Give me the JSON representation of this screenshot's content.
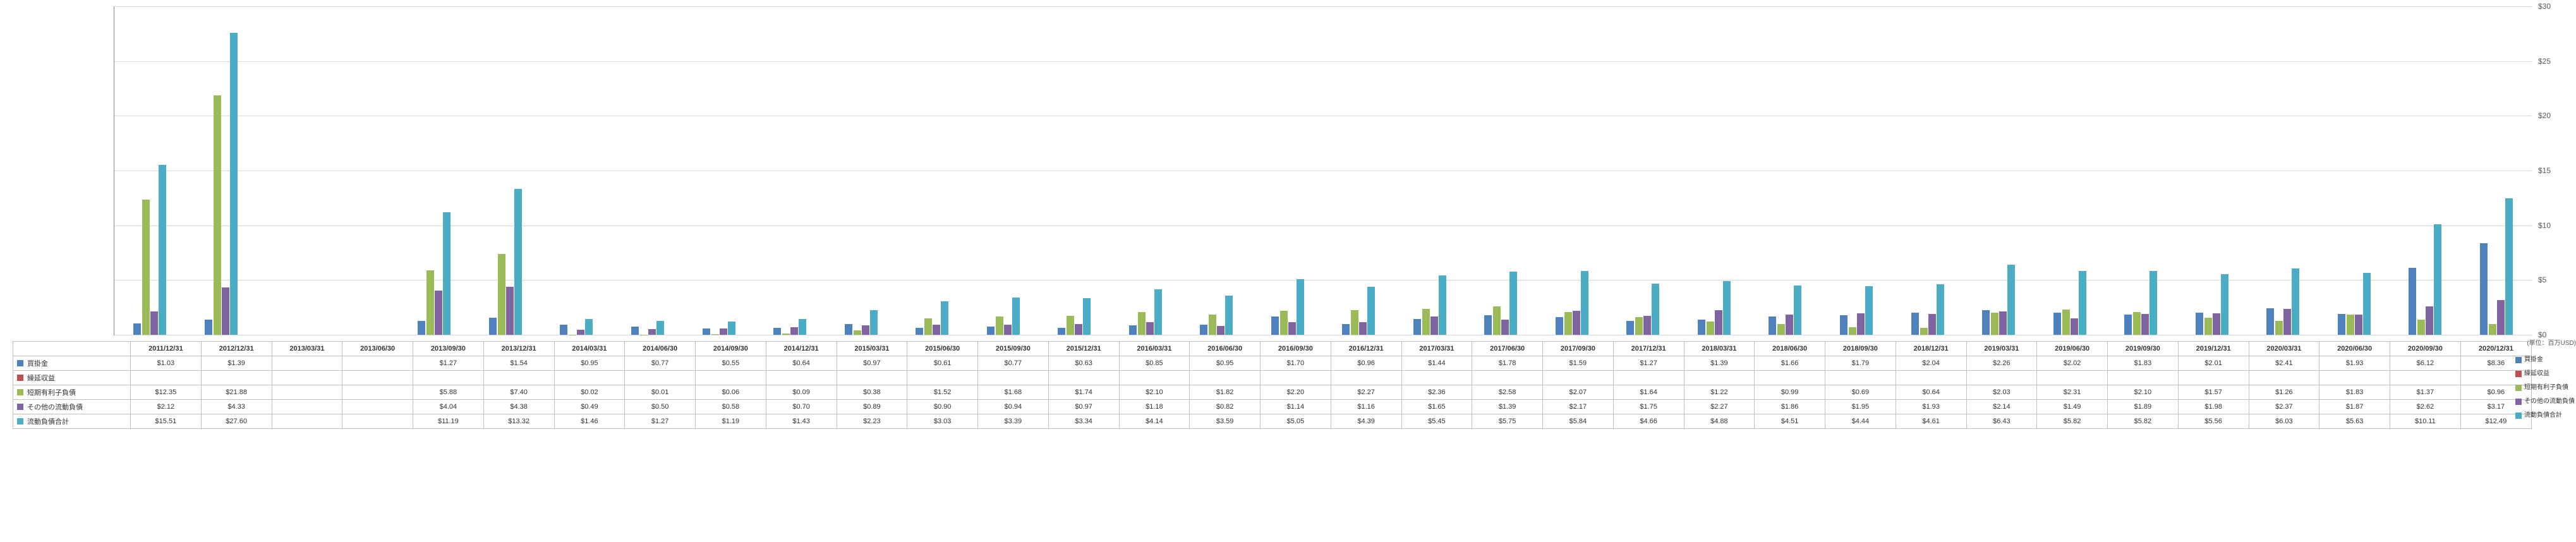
{
  "chart": {
    "type": "bar",
    "unit_label": "(単位：百万USD)",
    "ylim": [
      0,
      30
    ],
    "ytick_step": 5,
    "y_prefix": "$",
    "grid_color": "#d9d9d9",
    "axis_color": "#888888",
    "background_color": "#ffffff",
    "font_family": "Arial",
    "tick_fontsize": 12
  },
  "series": [
    {
      "key": "ap",
      "name": "買掛金",
      "color": "#4f81bd"
    },
    {
      "key": "def",
      "name": "繰延収益",
      "color": "#c0504d"
    },
    {
      "key": "std",
      "name": "短期有利子負債",
      "color": "#9bbb59"
    },
    {
      "key": "ocl",
      "name": "その他の流動負債",
      "color": "#8064a2"
    },
    {
      "key": "tcl",
      "name": "流動負債合計",
      "color": "#4bacc6"
    }
  ],
  "periods": [
    "2011/12/31",
    "2012/12/31",
    "2013/03/31",
    "2013/06/30",
    "2013/09/30",
    "2013/12/31",
    "2014/03/31",
    "2014/06/30",
    "2014/09/30",
    "2014/12/31",
    "2015/03/31",
    "2015/06/30",
    "2015/09/30",
    "2015/12/31",
    "2016/03/31",
    "2016/06/30",
    "2016/09/30",
    "2016/12/31",
    "2017/03/31",
    "2017/06/30",
    "2017/09/30",
    "2017/12/31",
    "2018/03/31",
    "2018/06/30",
    "2018/09/30",
    "2018/12/31",
    "2019/03/31",
    "2019/06/30",
    "2019/09/30",
    "2019/12/31",
    "2020/03/31",
    "2020/06/30",
    "2020/09/30",
    "2020/12/31"
  ],
  "data": {
    "ap": [
      "$1.03",
      "$1.39",
      "",
      "",
      "$1.27",
      "$1.54",
      "$0.95",
      "$0.77",
      "$0.55",
      "$0.64",
      "$0.97",
      "$0.61",
      "$0.77",
      "$0.63",
      "$0.85",
      "$0.95",
      "$1.70",
      "$0.96",
      "$1.44",
      "$1.78",
      "$1.59",
      "$1.27",
      "$1.39",
      "$1.66",
      "$1.79",
      "$2.04",
      "$2.26",
      "$2.02",
      "$1.83",
      "$2.01",
      "$2.41",
      "$1.93",
      "$6.12",
      "$8.36"
    ],
    "def": [
      "",
      "",
      "",
      "",
      "",
      "",
      "",
      "",
      "",
      "",
      "",
      "",
      "",
      "",
      "",
      "",
      "",
      "",
      "",
      "",
      "",
      "",
      "",
      "",
      "",
      "",
      "",
      "",
      "",
      "",
      "",
      "",
      "",
      ""
    ],
    "std": [
      "$12.35",
      "$21.88",
      "",
      "",
      "$5.88",
      "$7.40",
      "$0.02",
      "$0.01",
      "$0.06",
      "$0.09",
      "$0.38",
      "$1.52",
      "$1.68",
      "$1.74",
      "$2.10",
      "$1.82",
      "$2.20",
      "$2.27",
      "$2.36",
      "$2.58",
      "$2.07",
      "$1.64",
      "$1.22",
      "$0.99",
      "$0.69",
      "$0.64",
      "$2.03",
      "$2.31",
      "$2.10",
      "$1.57",
      "$1.26",
      "$1.83",
      "$1.37",
      "$0.96"
    ],
    "ocl": [
      "$2.12",
      "$4.33",
      "",
      "",
      "$4.04",
      "$4.38",
      "$0.49",
      "$0.50",
      "$0.58",
      "$0.70",
      "$0.89",
      "$0.90",
      "$0.94",
      "$0.97",
      "$1.18",
      "$0.82",
      "$1.14",
      "$1.16",
      "$1.65",
      "$1.39",
      "$2.17",
      "$1.75",
      "$2.27",
      "$1.86",
      "$1.95",
      "$1.93",
      "$2.14",
      "$1.49",
      "$1.89",
      "$1.98",
      "$2.37",
      "$1.87",
      "$2.62",
      "$3.17"
    ],
    "tcl": [
      "$15.51",
      "$27.60",
      "",
      "",
      "$11.19",
      "$13.32",
      "$1.46",
      "$1.27",
      "$1.19",
      "$1.43",
      "$2.23",
      "$3.03",
      "$3.39",
      "$3.34",
      "$4.14",
      "$3.59",
      "$5.05",
      "$4.39",
      "$5.45",
      "$5.75",
      "$5.84",
      "$4.66",
      "$4.88",
      "$4.51",
      "$4.44",
      "$4.61",
      "$6.43",
      "$5.82",
      "$5.82",
      "$5.56",
      "$6.03",
      "$5.63",
      "$10.11",
      "$12.49"
    ]
  }
}
